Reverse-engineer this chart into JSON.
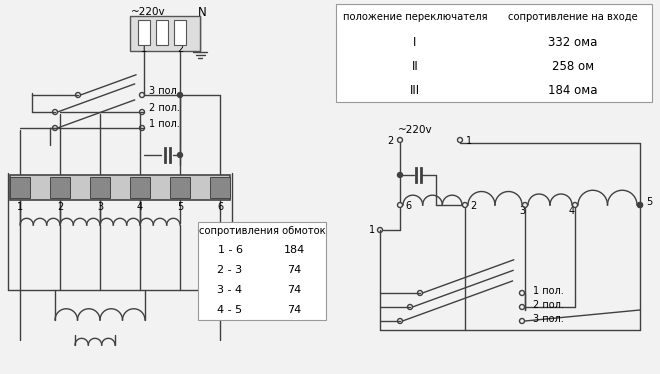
{
  "bg_color": "#f2f2f2",
  "line_color": "#404040",
  "table1": {
    "title": "положение переключателя",
    "col2": "сопротивление на входе",
    "rows": [
      [
        "I",
        "332 ома"
      ],
      [
        "II",
        "258 ом"
      ],
      [
        "III",
        "184 ома"
      ]
    ]
  },
  "table2": {
    "title": "сопротивления обмоток",
    "rows": [
      [
        "1 - 6",
        "184"
      ],
      [
        "2 - 3",
        "74"
      ],
      [
        "3 - 4",
        "74"
      ],
      [
        "4 - 5",
        "74"
      ]
    ]
  },
  "label_220v_left": "~220v",
  "label_N_left": "N",
  "label_220v_right": "~220v",
  "switch_labels_left": [
    "3 пол.",
    "2 пол.",
    "1 пол."
  ],
  "switch_labels_right": [
    "1 пол.",
    "2 пол.",
    "3 пол."
  ]
}
